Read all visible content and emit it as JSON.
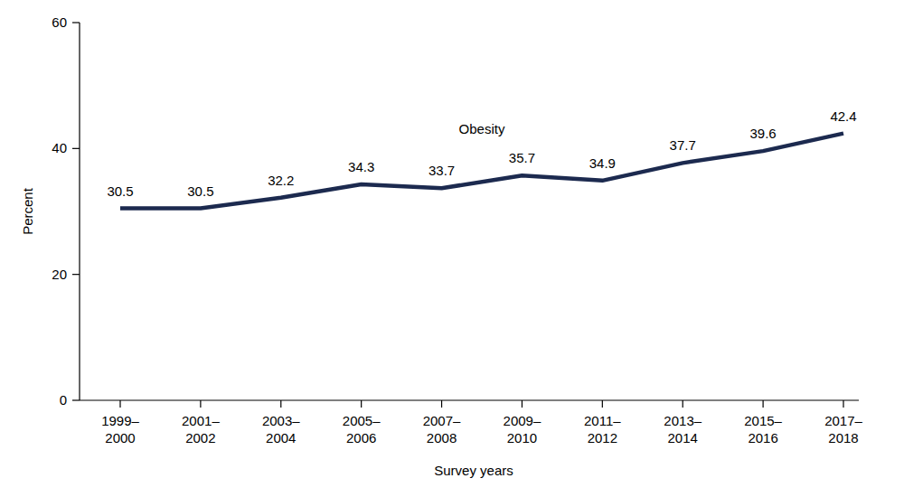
{
  "chart_data": {
    "type": "line",
    "x_label": "Survey years",
    "y_label": "Percent",
    "categories": [
      "1999–2000",
      "2001–2002",
      "2003–2004",
      "2005–2006",
      "2007–2008",
      "2009–2010",
      "2011–2012",
      "2013–2014",
      "2015–2016",
      "2017–2018"
    ],
    "series": [
      {
        "name": "Obesity",
        "color": "#1c2a4f",
        "values": [
          30.5,
          30.5,
          32.2,
          34.3,
          33.7,
          35.7,
          34.9,
          37.7,
          39.6,
          42.4
        ]
      }
    ],
    "ylim": [
      0,
      60
    ],
    "yticks": [
      0,
      20,
      40,
      60
    ],
    "grid": false,
    "data_labels": true
  }
}
